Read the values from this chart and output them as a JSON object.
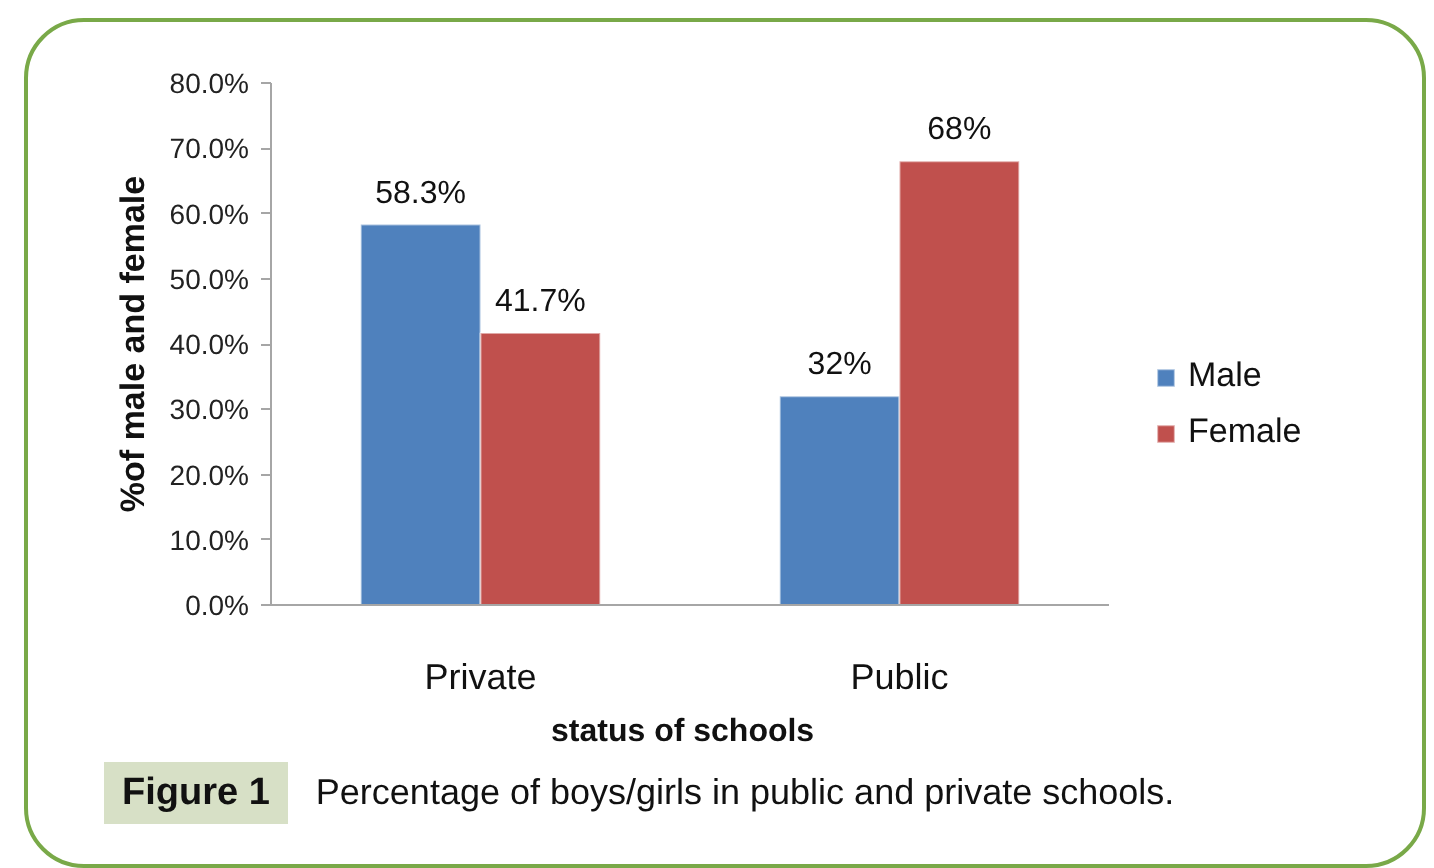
{
  "chart_data": {
    "type": "bar",
    "categories": [
      "Private",
      "Public"
    ],
    "series": [
      {
        "name": "Male",
        "color": "#4f81bd",
        "values": [
          58.3,
          32
        ],
        "value_labels": [
          "58.3%",
          "32%"
        ]
      },
      {
        "name": "Female",
        "color": "#c0504d",
        "values": [
          41.7,
          68
        ],
        "value_labels": [
          "41.7%",
          "68%"
        ]
      }
    ],
    "ylim": [
      0,
      80
    ],
    "yticks": [
      {
        "value": 0,
        "label": "0.0%"
      },
      {
        "value": 10,
        "label": "10.0%"
      },
      {
        "value": 20,
        "label": "20.0%"
      },
      {
        "value": 30,
        "label": "30.0%"
      },
      {
        "value": 40,
        "label": "40.0%"
      },
      {
        "value": 50,
        "label": "50.0%"
      },
      {
        "value": 60,
        "label": "60.0%"
      },
      {
        "value": 70,
        "label": "70.0%"
      },
      {
        "value": 80,
        "label": "80.0%"
      }
    ],
    "xlabel": "status of schools",
    "ylabel": "%of male and female",
    "legend": "right",
    "annotations": [
      "Figure 1",
      "Percentage of boys/girls in public and private schools."
    ]
  }
}
